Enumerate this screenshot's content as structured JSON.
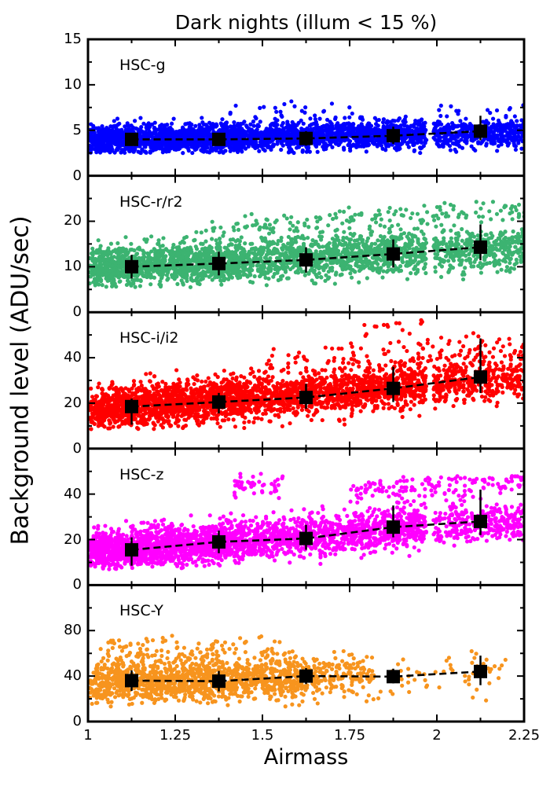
{
  "chart_data": {
    "type": "scatter",
    "title": "Dark nights (illum < 15 %)",
    "xlabel": "Airmass",
    "ylabel": "Background level (ADU/sec)",
    "grid": false,
    "legend": "none",
    "x_axis": {
      "range": [
        1,
        2.25
      ],
      "major_ticks": [
        1,
        1.25,
        1.5,
        1.75,
        2,
        2.25
      ],
      "tick_labels": [
        "1",
        "1.25",
        "1.5",
        "1.75",
        "2",
        "2.25"
      ],
      "minor_step": 0.125
    },
    "bin_centers": [
      1.125,
      1.375,
      1.625,
      1.875,
      2.125
    ],
    "marker_color": "#000000",
    "trend_line_style": "dashed",
    "panels": [
      {
        "id": "hsc-g",
        "label": "HSC-g",
        "color": "#0000ff",
        "ylim": [
          0,
          15
        ],
        "labeled_ticks": [
          0,
          5,
          10,
          15
        ],
        "major_step": 5,
        "minor_step": 2.5,
        "medians": [
          4.0,
          4.0,
          4.1,
          4.4,
          4.9
        ],
        "err_lo": [
          0.7,
          0.7,
          0.8,
          0.9,
          1.0
        ],
        "err_hi": [
          0.7,
          0.7,
          0.8,
          1.0,
          1.7
        ],
        "clouds": [
          {
            "xsegs": [
              [
                1.005,
                1.45,
                1400
              ],
              [
                1.45,
                1.97,
                1100
              ],
              [
                1.99,
                2.26,
                420
              ]
            ],
            "base": 3.9,
            "slope": 0.7,
            "std": 0.8,
            "clip": [
              2.5,
              6.6
            ]
          },
          {
            "xsegs": [
              [
                1.4,
                1.8,
                25
              ],
              [
                2.0,
                2.26,
                15
              ]
            ],
            "base": 6.5,
            "slope": 0.8,
            "std": 0.5,
            "clip": [
              5.5,
              8.2
            ]
          }
        ]
      },
      {
        "id": "hsc-r",
        "label": "HSC-r/r2",
        "color": "#3cb371",
        "ylim": [
          0,
          30
        ],
        "labeled_ticks": [
          0,
          10,
          20
        ],
        "major_step": 10,
        "minor_step": 5,
        "medians": [
          10.0,
          10.7,
          11.5,
          12.8,
          14.3
        ],
        "err_lo": [
          2.6,
          2.6,
          2.8,
          3.0,
          2.9
        ],
        "err_hi": [
          2.6,
          2.6,
          2.8,
          3.2,
          5.0
        ],
        "clouds": [
          {
            "xsegs": [
              [
                1.005,
                1.45,
                1250
              ],
              [
                1.45,
                1.97,
                1000
              ],
              [
                1.99,
                2.26,
                400
              ]
            ],
            "base": 9.5,
            "slope": 4.0,
            "std": 2.2,
            "clip": [
              5.5,
              18.5
            ]
          },
          {
            "xsegs": [
              [
                1.35,
                2.26,
                170
              ]
            ],
            "base": 16.0,
            "slope": 5.2,
            "std": 1.5,
            "clip": [
              14.5,
              24.5
            ]
          }
        ]
      },
      {
        "id": "hsc-i",
        "label": "HSC-i/i2",
        "color": "#ff0000",
        "ylim": [
          0,
          60
        ],
        "labeled_ticks": [
          0,
          20,
          40
        ],
        "major_step": 20,
        "minor_step": 10,
        "medians": [
          18.5,
          20.5,
          22.5,
          26.5,
          31.5
        ],
        "err_lo": [
          8.0,
          5.0,
          5.0,
          6.0,
          7.0
        ],
        "err_hi": [
          3.5,
          4.0,
          6.0,
          9.5,
          17.0
        ],
        "clouds": [
          {
            "xsegs": [
              [
                1.005,
                1.45,
                1450
              ],
              [
                1.45,
                1.97,
                1150
              ],
              [
                1.99,
                2.26,
                380
              ]
            ],
            "base": 17.0,
            "slope": 11.5,
            "std": 4.6,
            "clip": [
              8.5,
              42
            ]
          },
          {
            "xsegs": [
              [
                1.5,
                2.26,
                140
              ]
            ],
            "base": 33.0,
            "slope": 9.0,
            "std": 4.0,
            "clip": [
              29,
              52
            ]
          },
          {
            "xsegs": [
              [
                1.78,
                1.98,
                12
              ]
            ],
            "base": 54.0,
            "slope": 0,
            "std": 1.2,
            "clip": [
              51,
              57
            ]
          }
        ]
      },
      {
        "id": "hsc-z",
        "label": "HSC-z",
        "color": "#ff00ff",
        "ylim": [
          0,
          60
        ],
        "labeled_ticks": [
          0,
          20,
          40
        ],
        "major_step": 20,
        "minor_step": 10,
        "medians": [
          15.5,
          19.0,
          20.5,
          25.5,
          28.0
        ],
        "err_lo": [
          7.0,
          5.0,
          5.0,
          4.5,
          6.0
        ],
        "err_hi": [
          5.5,
          5.0,
          6.0,
          9.5,
          14.0
        ],
        "clouds": [
          {
            "xsegs": [
              [
                1.005,
                1.45,
                1350
              ],
              [
                1.45,
                1.97,
                1050
              ],
              [
                1.99,
                2.26,
                300
              ]
            ],
            "base": 14.5,
            "slope": 11.5,
            "std": 4.4,
            "clip": [
              7,
              38
            ]
          },
          {
            "xsegs": [
              [
                1.42,
                1.56,
                45
              ]
            ],
            "base": 43.0,
            "slope": 0,
            "std": 3.2,
            "clip": [
              37,
              50
            ]
          },
          {
            "xsegs": [
              [
                1.75,
                2.26,
                150
              ]
            ],
            "base": 35.0,
            "slope": 9.0,
            "std": 3.5,
            "clip": [
              31,
              48
            ]
          }
        ]
      },
      {
        "id": "hsc-y",
        "label": "HSC-Y",
        "color": "#f7941e",
        "ylim": [
          0,
          120
        ],
        "labeled_ticks": [
          0,
          40,
          80
        ],
        "major_step": 40,
        "minor_step": 20,
        "medians": [
          36.0,
          35.5,
          40.0,
          39.5,
          44.0
        ],
        "err_lo": [
          9.0,
          9.0,
          7.0,
          6.0,
          12.0
        ],
        "err_hi": [
          9.0,
          9.0,
          7.0,
          7.0,
          14.0
        ],
        "clouds": [
          {
            "xsegs": [
              [
                1.005,
                1.38,
                850
              ],
              [
                1.38,
                1.62,
                430
              ],
              [
                1.62,
                1.82,
                170
              ],
              [
                1.82,
                2.2,
                60
              ]
            ],
            "base": 35.2,
            "slope": 6.0,
            "std": 10.0,
            "clip": [
              13,
              62
            ]
          },
          {
            "xsegs": [
              [
                1.03,
                1.55,
                90
              ]
            ],
            "base": 64.0,
            "slope": 2.0,
            "std": 5.0,
            "clip": [
              55,
              77
            ]
          }
        ]
      }
    ]
  }
}
